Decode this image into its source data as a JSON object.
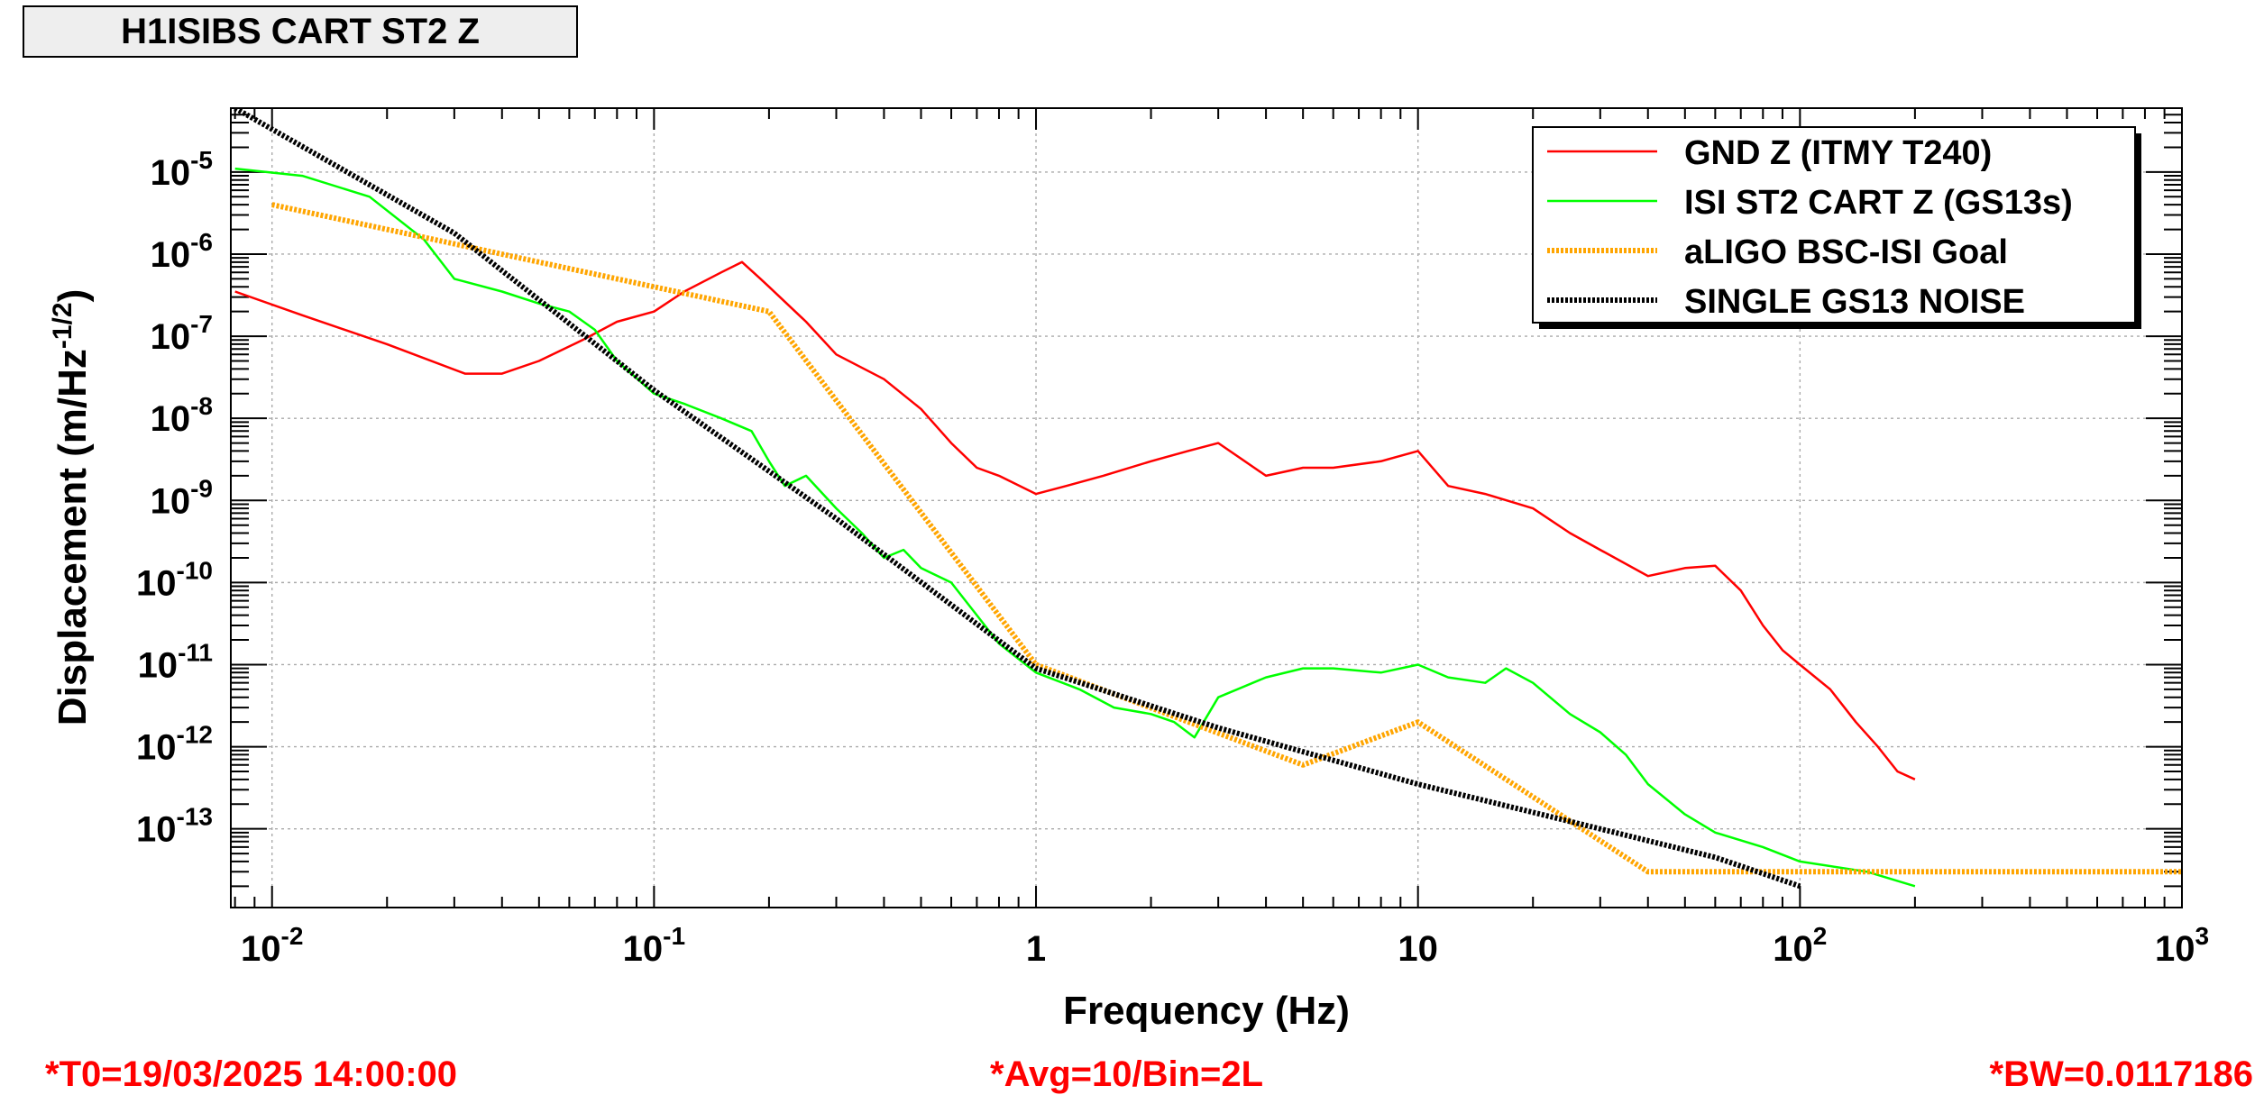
{
  "title": "H1ISIBS CART ST2 Z",
  "footer": {
    "t0": "*T0=19/03/2025 14:00:00",
    "avg": "*Avg=10/Bin=2L",
    "bw": "*BW=0.0117186"
  },
  "chart_data": {
    "type": "line",
    "xlabel": "Frequency (Hz)",
    "ylabel": "Displacement (m/Hz^-1/2)",
    "xscale": "log",
    "yscale": "log",
    "xlim": [
      0.0078,
      1000
    ],
    "ylim": [
      1.1e-14,
      6e-05
    ],
    "grid": true,
    "legend_position": "top-right",
    "x_ticks": [
      {
        "value": 0.01,
        "base": "10",
        "exp": "-2"
      },
      {
        "value": 0.1,
        "base": "10",
        "exp": "-1"
      },
      {
        "value": 1,
        "base": "1",
        "exp": ""
      },
      {
        "value": 10,
        "base": "10",
        "exp": ""
      },
      {
        "value": 100,
        "base": "10",
        "exp": "2"
      },
      {
        "value": 1000,
        "base": "10",
        "exp": "3"
      }
    ],
    "y_ticks": [
      {
        "value": 1e-13,
        "base": "10",
        "exp": "-13"
      },
      {
        "value": 1e-12,
        "base": "10",
        "exp": "-12"
      },
      {
        "value": 1e-11,
        "base": "10",
        "exp": "-11"
      },
      {
        "value": 1e-10,
        "base": "10",
        "exp": "-10"
      },
      {
        "value": 1e-09,
        "base": "10",
        "exp": "-9"
      },
      {
        "value": 1e-08,
        "base": "10",
        "exp": "-8"
      },
      {
        "value": 1e-07,
        "base": "10",
        "exp": "-7"
      },
      {
        "value": 1e-06,
        "base": "10",
        "exp": "-6"
      },
      {
        "value": 1e-05,
        "base": "10",
        "exp": "-5"
      }
    ],
    "series": [
      {
        "name": "GND Z (ITMY T240)",
        "color": "#ff0000",
        "style": "solid",
        "x": [
          0.008,
          0.012,
          0.02,
          0.032,
          0.04,
          0.05,
          0.065,
          0.08,
          0.1,
          0.12,
          0.15,
          0.17,
          0.19,
          0.2,
          0.25,
          0.3,
          0.4,
          0.5,
          0.6,
          0.7,
          0.8,
          1.0,
          1.2,
          1.5,
          2.0,
          2.5,
          3.0,
          4.0,
          5.0,
          6.0,
          8.0,
          10.0,
          12.0,
          15.0,
          20.0,
          25.0,
          30.0,
          40.0,
          50.0,
          60.0,
          70.0,
          80.0,
          90.0,
          100.0,
          120.0,
          140.0,
          160.0,
          180.0,
          200.0
        ],
        "y": [
          3.5e-07,
          1.8e-07,
          8e-08,
          3.5e-08,
          3.5e-08,
          5e-08,
          9e-08,
          1.5e-07,
          2e-07,
          3.5e-07,
          6e-07,
          8e-07,
          5e-07,
          4e-07,
          1.5e-07,
          6e-08,
          3e-08,
          1.3e-08,
          5e-09,
          2.5e-09,
          2e-09,
          1.2e-09,
          1.5e-09,
          2e-09,
          3e-09,
          4e-09,
          5e-09,
          2e-09,
          2.5e-09,
          2.5e-09,
          3e-09,
          4e-09,
          1.5e-09,
          1.2e-09,
          8e-10,
          4e-10,
          2.5e-10,
          1.2e-10,
          1.5e-10,
          1.6e-10,
          8e-11,
          3e-11,
          1.5e-11,
          1e-11,
          5e-12,
          2e-12,
          1e-12,
          5e-13,
          4e-13
        ]
      },
      {
        "name": "ISI ST2 CART Z (GS13s)",
        "color": "#00ff00",
        "style": "solid",
        "x": [
          0.008,
          0.012,
          0.018,
          0.025,
          0.03,
          0.04,
          0.05,
          0.06,
          0.07,
          0.08,
          0.1,
          0.12,
          0.15,
          0.18,
          0.2,
          0.22,
          0.25,
          0.3,
          0.35,
          0.4,
          0.45,
          0.5,
          0.6,
          0.7,
          0.8,
          1.0,
          1.3,
          1.6,
          2.0,
          2.3,
          2.6,
          3.0,
          4.0,
          5.0,
          6.0,
          8.0,
          10.0,
          12.0,
          15.0,
          17.0,
          20.0,
          25.0,
          30.0,
          35.0,
          40.0,
          50.0,
          60.0,
          80.0,
          100.0,
          150.0,
          200.0
        ],
        "y": [
          1.1e-05,
          9e-06,
          5e-06,
          1.5e-06,
          5e-07,
          3.5e-07,
          2.5e-07,
          2e-07,
          1.2e-07,
          5e-08,
          2e-08,
          1.5e-08,
          1e-08,
          7e-09,
          3e-09,
          1.5e-09,
          2e-09,
          8e-10,
          4e-10,
          2e-10,
          2.5e-10,
          1.5e-10,
          1e-10,
          4e-11,
          1.8e-11,
          8e-12,
          5e-12,
          3e-12,
          2.5e-12,
          2e-12,
          1.3e-12,
          4e-12,
          7e-12,
          9e-12,
          9e-12,
          8e-12,
          1e-11,
          7e-12,
          6e-12,
          9e-12,
          6e-12,
          2.5e-12,
          1.5e-12,
          8e-13,
          3.5e-13,
          1.5e-13,
          9e-14,
          6e-14,
          4e-14,
          3e-14,
          2e-14
        ]
      },
      {
        "name": "aLIGO BSC-ISI Goal",
        "color": "#ffa500",
        "style": "dotted",
        "x": [
          0.01,
          0.2,
          1,
          5,
          10,
          40,
          1000
        ],
        "y": [
          4e-06,
          2e-07,
          1e-11,
          6e-13,
          2e-12,
          3e-14,
          3e-14
        ]
      },
      {
        "name": "SINGLE GS13 NOISE",
        "color": "#000000",
        "style": "dotted",
        "x": [
          0.008,
          0.03,
          0.1,
          0.3,
          1,
          3,
          10,
          30,
          60,
          100
        ],
        "y": [
          6e-05,
          1.8e-06,
          2.2e-08,
          6e-10,
          9e-12,
          1.7e-12,
          3.5e-13,
          1e-13,
          4.5e-14,
          2e-14
        ]
      }
    ]
  }
}
